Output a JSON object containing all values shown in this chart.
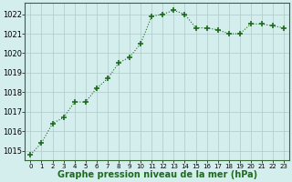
{
  "x": [
    0,
    1,
    2,
    3,
    4,
    5,
    6,
    7,
    8,
    9,
    10,
    11,
    12,
    13,
    14,
    15,
    16,
    17,
    18,
    19,
    20,
    21,
    22,
    23
  ],
  "y": [
    1014.8,
    1015.4,
    1016.4,
    1016.7,
    1017.5,
    1017.5,
    1018.2,
    1018.7,
    1019.5,
    1019.8,
    1020.5,
    1021.9,
    1022.0,
    1022.2,
    1022.0,
    1021.3,
    1021.3,
    1021.2,
    1021.0,
    1021.0,
    1021.5,
    1021.5,
    1021.4,
    1021.3
  ],
  "line_color": "#1e6b1e",
  "marker": "+",
  "marker_size": 4,
  "marker_lw": 1.2,
  "bg_color": "#d4eeee",
  "grid_color": "#b0c8c8",
  "ylabel_ticks": [
    1015,
    1016,
    1017,
    1018,
    1019,
    1020,
    1021,
    1022
  ],
  "xlabel": "Graphe pression niveau de la mer (hPa)",
  "ylim": [
    1014.5,
    1022.6
  ],
  "xlim": [
    -0.5,
    23.5
  ],
  "xlabel_fontsize": 7.0,
  "tick_fontsize": 6.0,
  "linewidth": 0.8
}
